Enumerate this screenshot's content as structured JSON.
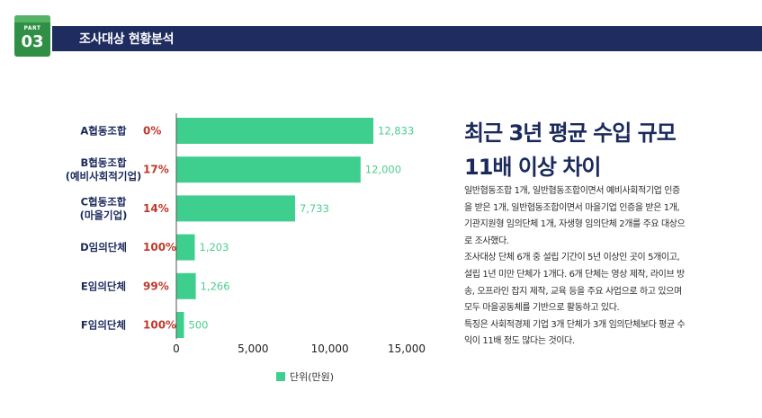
{
  "header": {
    "part_word": "PART",
    "part_number": "03",
    "title": "조사대상 현황분석"
  },
  "chart_data": {
    "type": "bar",
    "orientation": "horizontal",
    "categories": [
      [
        "A협동조합"
      ],
      [
        "B협동조합",
        "(예비사회적기업)"
      ],
      [
        "C협동조합",
        "(마을기업)"
      ],
      [
        "D임의단체"
      ],
      [
        "E임의단체"
      ],
      [
        "F임의단체"
      ]
    ],
    "percentages": [
      "0%",
      "17%",
      "14%",
      "100%",
      "99%",
      "100%"
    ],
    "values": [
      12833,
      12000,
      7733,
      1203,
      1266,
      500
    ],
    "value_labels": [
      "12,833",
      "12,000",
      "7,733",
      "1,203",
      "1,266",
      "500"
    ],
    "xlim": [
      0,
      15000
    ],
    "x_ticks": [
      0,
      5000,
      10000,
      15000
    ],
    "x_tick_labels": [
      "0",
      "5,000",
      "10,000",
      "15,000"
    ],
    "legend": {
      "label": "단위(만원)",
      "placement": "bottom"
    },
    "grid": false,
    "bar_color": "#3ecf8e"
  },
  "headline": {
    "line1": "최근 3년 평균 수입 규모",
    "line2": "11배 이상 차이"
  },
  "body": {
    "lines": [
      "일반협동조합 1개, 일반협동조합이면서 예비사회적기업 인증",
      "을 받은 1개, 일반협동조합이면서 마을기업 인증을 받은 1개,",
      "기관지원형 임의단체 1개, 자생형 임의단체 2개를 주요 대상으",
      "로 조사했다.",
      "조사대상 단체 6개 중 설립 기간이 5년 이상인 곳이 5개이고,",
      "설립 1년 미만 단체가 1개다. 6개 단체는 영상 제작, 라이브 방",
      "송, 오프라인 잡지 제작, 교육 등을 주요 사업으로 하고 있으며",
      "모두 마을공동체를 기반으로 활동하고 있다.",
      "특징은 사회적경제 기업 3개 단체가 3개 임의단체보다 평균 수",
      "익이 11배 정도 많다는 것이다."
    ]
  },
  "colors": {
    "header_bg": "#1e2c5f",
    "badge_bg": "#2f8f45",
    "accent_green": "#3ecf8e",
    "percent_red": "#c0392b",
    "text_navy": "#1b2a5c"
  }
}
